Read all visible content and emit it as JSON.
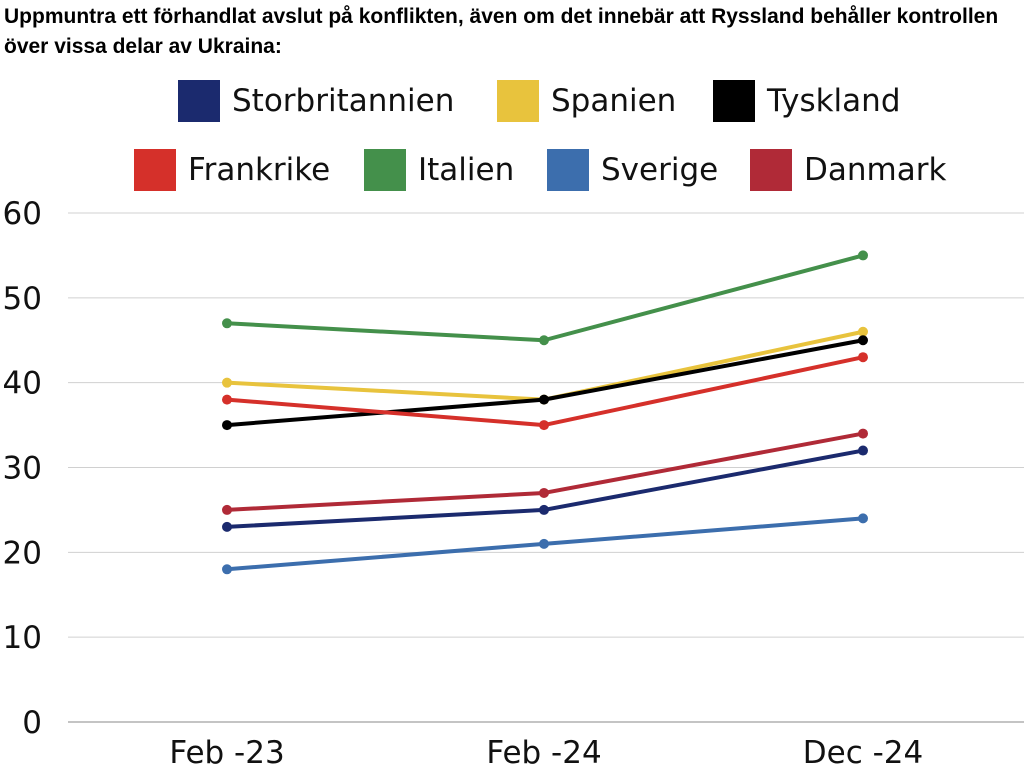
{
  "chart_data": {
    "type": "line",
    "title": "Uppmuntra ett förhandlat avslut på konflikten, även om det innebär att Ryssland behåller kontrollen över vissa delar av Ukraina:",
    "xlabel": "",
    "ylabel": "",
    "categories": [
      "Feb -23",
      "Feb -24",
      "Dec -24"
    ],
    "ylim": [
      0,
      60
    ],
    "yticks": [
      "0",
      "10",
      "20",
      "30",
      "40",
      "50",
      "60"
    ],
    "grid": true,
    "legend_position": "top",
    "series": [
      {
        "name": "Storbritannien",
        "color": "#1b2a6e",
        "values": [
          23,
          25,
          32
        ]
      },
      {
        "name": "Spanien",
        "color": "#e8c33d",
        "values": [
          40,
          38,
          46
        ]
      },
      {
        "name": "Tyskland",
        "color": "#000000",
        "values": [
          35,
          38,
          45
        ]
      },
      {
        "name": "Frankrike",
        "color": "#d5302a",
        "values": [
          38,
          35,
          43
        ]
      },
      {
        "name": "Italien",
        "color": "#44904b",
        "values": [
          47,
          45,
          55
        ]
      },
      {
        "name": "Sverige",
        "color": "#3c6ead",
        "values": [
          18,
          21,
          24
        ]
      },
      {
        "name": "Danmark",
        "color": "#b02a37",
        "values": [
          25,
          27,
          34
        ]
      }
    ]
  }
}
